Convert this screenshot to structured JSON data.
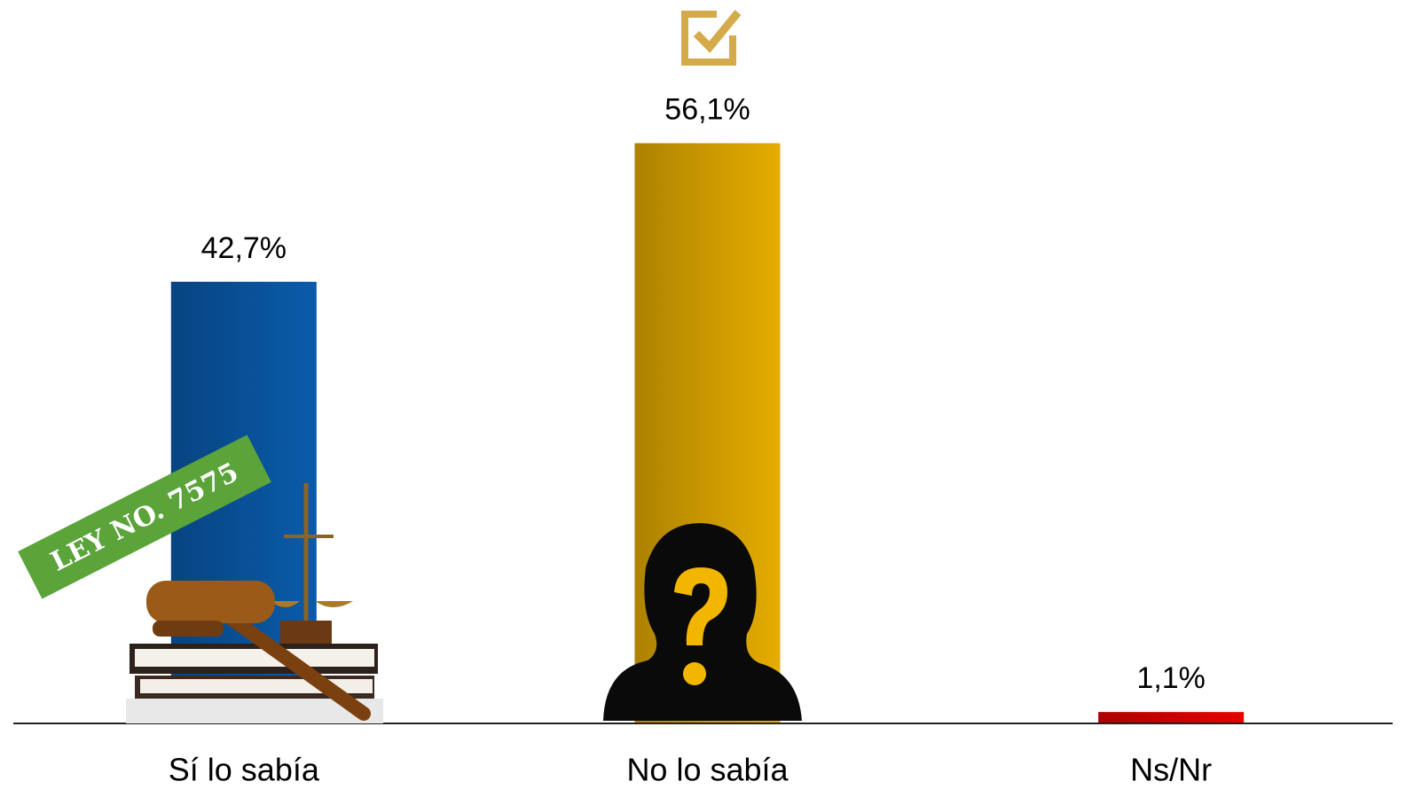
{
  "chart_data": {
    "type": "bar",
    "categories": [
      "Sí lo sabía",
      "No lo sabía",
      "Ns/Nr"
    ],
    "values": [
      42.7,
      56.1,
      1.1
    ],
    "value_labels": [
      "42,7%",
      "56,1%",
      "1,1%"
    ],
    "colors": [
      "#0a5bab",
      "#e6ad00",
      "#e60000"
    ],
    "ylim": [
      0,
      60
    ],
    "annotations": [
      "LEY NO. 7575"
    ]
  }
}
